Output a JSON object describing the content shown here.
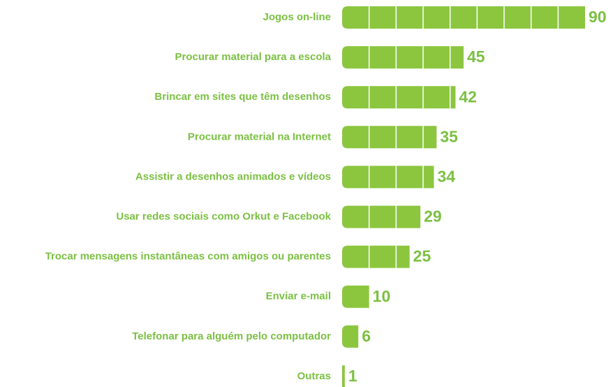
{
  "chart_data": {
    "type": "bar",
    "orientation": "horizontal",
    "categories": [
      "Jogos on-line",
      "Procurar material para a escola",
      "Brincar em sites que têm desenhos",
      "Procurar material na Internet",
      "Assistir a desenhos animados e vídeos",
      "Usar redes sociais como Orkut e Facebook",
      "Trocar mensagens instantâneas com amigos ou parentes",
      "Enviar e-mail",
      "Telefonar para alguém pelo computador",
      "Outras"
    ],
    "values": [
      90,
      45,
      42,
      35,
      34,
      29,
      25,
      10,
      6,
      1
    ],
    "color": "#8cc63f"
  }
}
